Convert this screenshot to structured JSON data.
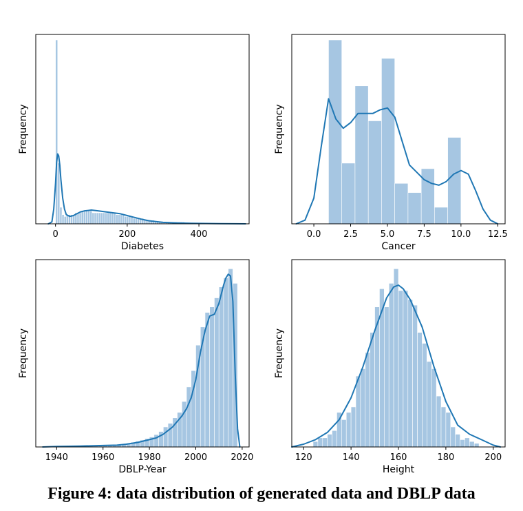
{
  "figure": {
    "caption": "Figure 4: data distribution of generated data and DBLP data"
  },
  "chart_data": [
    {
      "type": "bar",
      "subtype": "histogram with density curve",
      "xlabel": "Diabetes",
      "ylabel": "Frequency",
      "xlim": [
        -55,
        540
      ],
      "xticks": [
        0,
        200,
        400
      ],
      "ylim": [
        0,
        1.0
      ],
      "y_tick_labels_shown": false,
      "grid": false,
      "color": "#1f77b4",
      "bar_color": "#a6c6e2",
      "bins": {
        "edges": [
          0,
          6,
          12,
          18,
          24,
          30,
          36,
          42,
          48,
          54,
          60,
          66,
          72,
          78,
          84,
          90,
          96,
          102,
          108,
          114,
          120,
          126,
          132,
          138,
          144,
          150,
          156,
          162,
          168,
          174,
          180,
          186,
          192,
          198,
          204,
          210,
          216,
          222,
          228,
          234,
          240,
          246,
          252,
          258,
          264,
          270,
          276,
          282,
          288,
          294,
          300,
          306,
          312,
          318,
          324,
          330,
          336,
          342,
          348,
          354,
          360,
          366,
          372,
          378,
          384,
          390,
          396,
          402
        ],
        "heights": [
          1.0,
          0.33,
          0.09,
          0.05,
          0.04,
          0.05,
          0.05,
          0.05,
          0.05,
          0.06,
          0.06,
          0.06,
          0.07,
          0.07,
          0.07,
          0.07,
          0.07,
          0.06,
          0.06,
          0.06,
          0.06,
          0.06,
          0.06,
          0.06,
          0.06,
          0.06,
          0.06,
          0.06,
          0.05,
          0.05,
          0.05,
          0.05,
          0.04,
          0.04,
          0.04,
          0.04,
          0.03,
          0.03,
          0.03,
          0.03,
          0.03,
          0.02,
          0.02,
          0.02,
          0.02,
          0.02,
          0.01,
          0.01,
          0.01,
          0.01,
          0.01,
          0.01,
          0.01,
          0.01,
          0.01,
          0.01,
          0.01,
          0.01,
          0.01,
          0.01,
          0.005,
          0.005,
          0.005,
          0.005,
          0.005,
          0.005,
          0.005
        ]
      },
      "kde": {
        "x": [
          -20,
          -10,
          -5,
          0,
          3,
          6,
          9,
          12,
          15,
          20,
          25,
          30,
          40,
          50,
          60,
          70,
          80,
          100,
          120,
          140,
          160,
          180,
          200,
          220,
          240,
          260,
          280,
          300,
          340,
          380,
          420,
          460,
          500,
          530
        ],
        "y": [
          0,
          0.01,
          0.08,
          0.22,
          0.33,
          0.38,
          0.37,
          0.32,
          0.24,
          0.14,
          0.08,
          0.05,
          0.04,
          0.045,
          0.055,
          0.065,
          0.07,
          0.075,
          0.07,
          0.065,
          0.06,
          0.055,
          0.045,
          0.035,
          0.025,
          0.017,
          0.012,
          0.008,
          0.005,
          0.003,
          0.002,
          0.001,
          0.0005,
          0
        ]
      }
    },
    {
      "type": "bar",
      "subtype": "histogram with density curve",
      "xlabel": "Cancer",
      "ylabel": "Frequency",
      "xlim": [
        -1.5,
        13.0
      ],
      "xticks": [
        0.0,
        2.5,
        5.0,
        7.5,
        10.0,
        12.5
      ],
      "xtick_labels": [
        "0.0",
        "2.5",
        "5.0",
        "7.5",
        "10.0",
        "12.5"
      ],
      "ylim": [
        0,
        1.0
      ],
      "y_tick_labels_shown": false,
      "grid": false,
      "color": "#1f77b4",
      "bar_color": "#a6c6e2",
      "bins": {
        "edges": [
          1.0,
          1.9,
          2.8,
          3.7,
          4.6,
          5.5,
          6.4,
          7.3,
          8.2,
          9.1,
          10.0
        ],
        "heights": [
          1.0,
          0.33,
          0.75,
          0.56,
          0.9,
          0.22,
          0.17,
          0.3,
          0.09,
          0.47
        ]
      },
      "kde": {
        "x": [
          -1.2,
          -0.6,
          0.0,
          0.5,
          1.0,
          1.5,
          2.0,
          2.5,
          3.0,
          3.5,
          4.0,
          4.5,
          5.0,
          5.5,
          6.0,
          6.5,
          7.0,
          7.5,
          8.0,
          8.5,
          9.0,
          9.5,
          10.0,
          10.5,
          11.0,
          11.5,
          12.0,
          12.5
        ],
        "y": [
          0.0,
          0.02,
          0.14,
          0.42,
          0.68,
          0.57,
          0.52,
          0.55,
          0.6,
          0.6,
          0.6,
          0.62,
          0.63,
          0.58,
          0.45,
          0.32,
          0.28,
          0.24,
          0.22,
          0.21,
          0.23,
          0.27,
          0.29,
          0.27,
          0.18,
          0.08,
          0.02,
          0.0
        ]
      }
    },
    {
      "type": "bar",
      "subtype": "histogram with density curve",
      "xlabel": "DBLP-Year",
      "ylabel": "Frequency",
      "xlim": [
        1931,
        2023
      ],
      "xticks": [
        1940,
        1960,
        1980,
        2000,
        2020
      ],
      "ylim": [
        0,
        1.0
      ],
      "y_tick_labels_shown": false,
      "grid": false,
      "color": "#1f77b4",
      "bar_color": "#a6c6e2",
      "bins": {
        "edges": [
          1936,
          1938,
          1940,
          1942,
          1944,
          1946,
          1948,
          1950,
          1952,
          1954,
          1956,
          1958,
          1960,
          1962,
          1964,
          1966,
          1968,
          1970,
          1972,
          1974,
          1976,
          1978,
          1980,
          1982,
          1984,
          1986,
          1988,
          1990,
          1992,
          1994,
          1996,
          1998,
          2000,
          2002,
          2004,
          2006,
          2008,
          2010,
          2012,
          2014,
          2016,
          2018
        ],
        "heights": [
          0.005,
          0.005,
          0.005,
          0.005,
          0.005,
          0.005,
          0.005,
          0.005,
          0.005,
          0.007,
          0.008,
          0.009,
          0.01,
          0.01,
          0.012,
          0.014,
          0.016,
          0.02,
          0.026,
          0.032,
          0.038,
          0.046,
          0.055,
          0.068,
          0.085,
          0.11,
          0.13,
          0.16,
          0.19,
          0.25,
          0.33,
          0.42,
          0.56,
          0.66,
          0.74,
          0.77,
          0.82,
          0.88,
          0.93,
          0.98,
          0.9
        ]
      },
      "kde": {
        "x": [
          1934,
          1940,
          1950,
          1960,
          1966,
          1970,
          1975,
          1980,
          1983,
          1986,
          1988,
          1990,
          1992,
          1994,
          1996,
          1998,
          2000,
          2002,
          2004,
          2006,
          2008,
          2010,
          2012,
          2013,
          2014,
          2015,
          2016,
          2017,
          2018,
          2019
        ],
        "y": [
          0.0,
          0.003,
          0.005,
          0.008,
          0.01,
          0.015,
          0.025,
          0.04,
          0.05,
          0.07,
          0.09,
          0.11,
          0.14,
          0.17,
          0.21,
          0.27,
          0.37,
          0.52,
          0.64,
          0.72,
          0.73,
          0.79,
          0.89,
          0.93,
          0.95,
          0.94,
          0.8,
          0.4,
          0.1,
          0.0
        ]
      }
    },
    {
      "type": "bar",
      "subtype": "histogram with density curve",
      "xlabel": "Height",
      "ylabel": "Frequency",
      "xlim": [
        115,
        205
      ],
      "xticks": [
        120,
        140,
        160,
        180,
        200
      ],
      "ylim": [
        0,
        1.0
      ],
      "y_tick_labels_shown": false,
      "grid": false,
      "color": "#1f77b4",
      "bar_color": "#a6c6e2",
      "bins": {
        "edges": [
          124,
          126,
          128,
          130,
          132,
          134,
          136,
          138,
          140,
          142,
          144,
          146,
          148,
          150,
          152,
          154,
          156,
          158,
          160,
          162,
          164,
          166,
          168,
          170,
          172,
          174,
          176,
          178,
          180,
          182,
          184,
          186,
          188,
          190,
          192,
          194
        ],
        "heights": [
          0.03,
          0.05,
          0.05,
          0.07,
          0.09,
          0.19,
          0.15,
          0.19,
          0.22,
          0.39,
          0.43,
          0.52,
          0.63,
          0.77,
          0.87,
          0.77,
          0.9,
          0.98,
          0.86,
          0.86,
          0.81,
          0.78,
          0.63,
          0.57,
          0.47,
          0.43,
          0.28,
          0.22,
          0.19,
          0.11,
          0.07,
          0.04,
          0.05,
          0.03,
          0.02
        ]
      },
      "kde": {
        "x": [
          115,
          120,
          125,
          130,
          135,
          140,
          145,
          150,
          155,
          158,
          160,
          162,
          165,
          170,
          175,
          180,
          185,
          190,
          195,
          200,
          203
        ],
        "y": [
          0.0,
          0.015,
          0.04,
          0.08,
          0.15,
          0.27,
          0.44,
          0.64,
          0.82,
          0.88,
          0.89,
          0.87,
          0.81,
          0.66,
          0.44,
          0.25,
          0.12,
          0.07,
          0.04,
          0.01,
          0.0
        ]
      }
    }
  ]
}
